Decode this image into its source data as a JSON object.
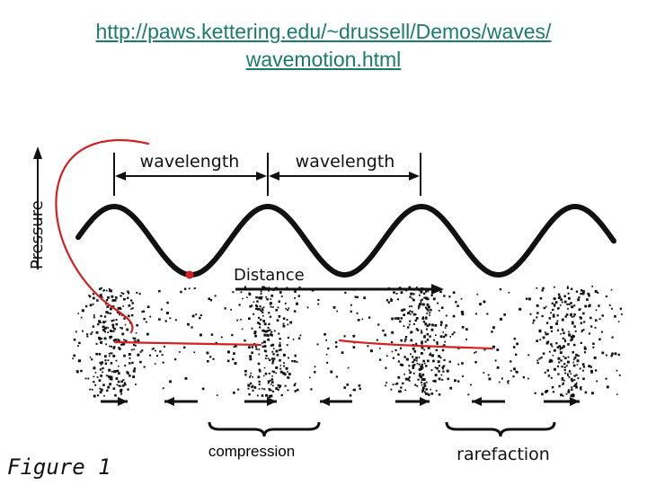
{
  "header": {
    "url_line1": "http://paws.kettering.edu/~drussell/Demos/waves/",
    "url_line2": "wavemotion.html"
  },
  "figure": {
    "axis_label": "Pressure",
    "wavelength_1": "wavelength",
    "wavelength_2": "wavelength",
    "distance_label": "Distance",
    "compression_label": "compression",
    "rarefaction_label": "rarefaction",
    "caption": "Figure 1"
  },
  "colors": {
    "link": "#1a7a6e",
    "annotation_red": "#d42020",
    "ink": "#111111"
  }
}
